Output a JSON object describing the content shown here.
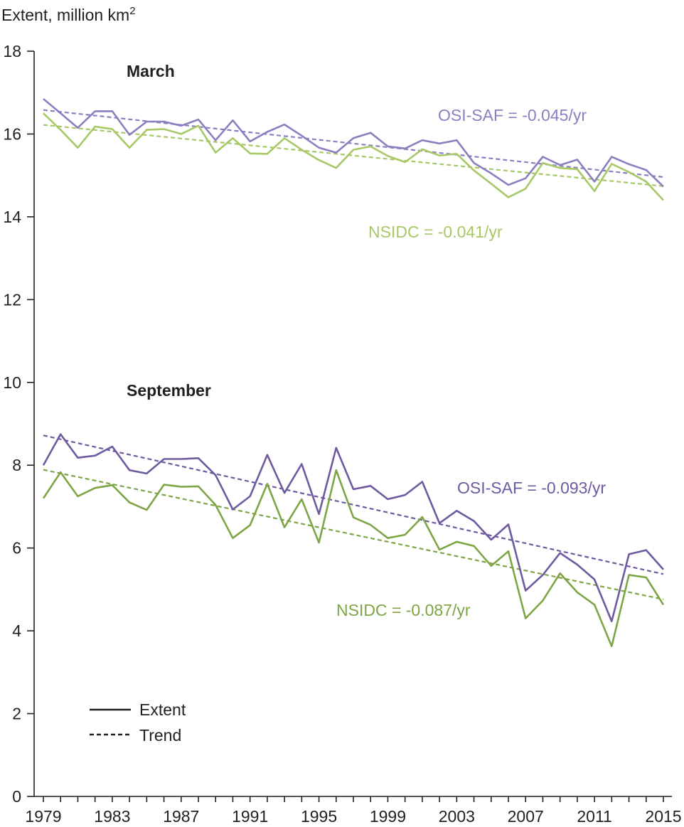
{
  "chart_data": {
    "type": "line",
    "ylabel": "Extent, million km",
    "ylabel_sup": "2",
    "ylim": [
      0,
      18
    ],
    "yticks": [
      0,
      2,
      4,
      6,
      8,
      10,
      12,
      14,
      16,
      18
    ],
    "xlim": [
      1979,
      2015
    ],
    "xticks": [
      1979,
      1983,
      1987,
      1991,
      1995,
      1999,
      2003,
      2007,
      2011,
      2015
    ],
    "x": [
      1979,
      1980,
      1981,
      1982,
      1983,
      1984,
      1985,
      1986,
      1987,
      1988,
      1989,
      1990,
      1991,
      1992,
      1993,
      1994,
      1995,
      1996,
      1997,
      1998,
      1999,
      2000,
      2001,
      2002,
      2003,
      2004,
      2005,
      2006,
      2007,
      2008,
      2009,
      2010,
      2011,
      2012,
      2013,
      2014,
      2015
    ],
    "colors": {
      "osisaf_march": "#8c7fc0",
      "nsidc_march": "#a6c866",
      "osisaf_september": "#6e5aa0",
      "nsidc_september": "#7ea545",
      "axis": "#231f20"
    },
    "panels": [
      {
        "label": "March",
        "series": [
          {
            "name": "OSI-SAF",
            "color_key": "osisaf_march",
            "values": [
              16.85,
              16.5,
              16.15,
              16.55,
              16.55,
              15.98,
              16.3,
              16.3,
              16.2,
              16.35,
              15.85,
              16.33,
              15.82,
              16.05,
              16.23,
              15.96,
              15.67,
              15.55,
              15.9,
              16.03,
              15.7,
              15.65,
              15.85,
              15.77,
              15.85,
              15.3,
              15.05,
              14.77,
              14.93,
              15.45,
              15.25,
              15.38,
              14.85,
              15.45,
              15.27,
              15.13,
              14.73
            ],
            "trend": [
              16.58,
              14.96
            ],
            "annotation": "OSI-SAF = -0.045/yr"
          },
          {
            "name": "NSIDC",
            "color_key": "nsidc_march",
            "values": [
              16.5,
              16.1,
              15.67,
              16.18,
              16.12,
              15.67,
              16.1,
              16.12,
              16.0,
              16.2,
              15.55,
              15.9,
              15.53,
              15.52,
              15.9,
              15.62,
              15.37,
              15.18,
              15.62,
              15.7,
              15.47,
              15.32,
              15.63,
              15.48,
              15.52,
              15.12,
              14.8,
              14.47,
              14.68,
              15.3,
              15.18,
              15.15,
              14.62,
              15.28,
              15.08,
              14.85,
              14.4
            ],
            "trend": [
              16.22,
              14.74
            ],
            "annotation": "NSIDC = -0.041/yr"
          }
        ]
      },
      {
        "label": "September",
        "series": [
          {
            "name": "OSI-SAF",
            "color_key": "osisaf_september",
            "values": [
              8.0,
              8.75,
              8.18,
              8.23,
              8.45,
              7.88,
              7.8,
              8.15,
              8.15,
              8.17,
              7.76,
              6.93,
              7.25,
              8.25,
              7.33,
              8.03,
              6.82,
              8.42,
              7.42,
              7.5,
              7.18,
              7.28,
              7.6,
              6.6,
              6.9,
              6.65,
              6.2,
              6.57,
              4.97,
              5.35,
              5.88,
              5.6,
              5.24,
              4.23,
              5.85,
              5.95,
              5.48
            ],
            "trend": [
              8.72,
              5.37
            ],
            "annotation": "OSI-SAF = -0.093/yr"
          },
          {
            "name": "NSIDC",
            "color_key": "nsidc_september",
            "values": [
              7.2,
              7.83,
              7.25,
              7.45,
              7.52,
              7.1,
              6.92,
              7.53,
              7.48,
              7.49,
              7.04,
              6.24,
              6.55,
              7.55,
              6.5,
              7.18,
              6.13,
              7.88,
              6.74,
              6.56,
              6.24,
              6.32,
              6.75,
              5.96,
              6.15,
              6.05,
              5.57,
              5.92,
              4.3,
              4.73,
              5.39,
              4.93,
              4.63,
              3.63,
              5.35,
              5.29,
              4.63
            ],
            "trend": [
              7.89,
              4.76
            ],
            "annotation": "NSIDC = -0.087/yr"
          }
        ]
      }
    ],
    "legend": {
      "placement": "bottom-left",
      "entries": [
        {
          "label": "Extent",
          "style": "solid"
        },
        {
          "label": "Trend",
          "style": "dashed"
        }
      ]
    },
    "grid": false
  }
}
